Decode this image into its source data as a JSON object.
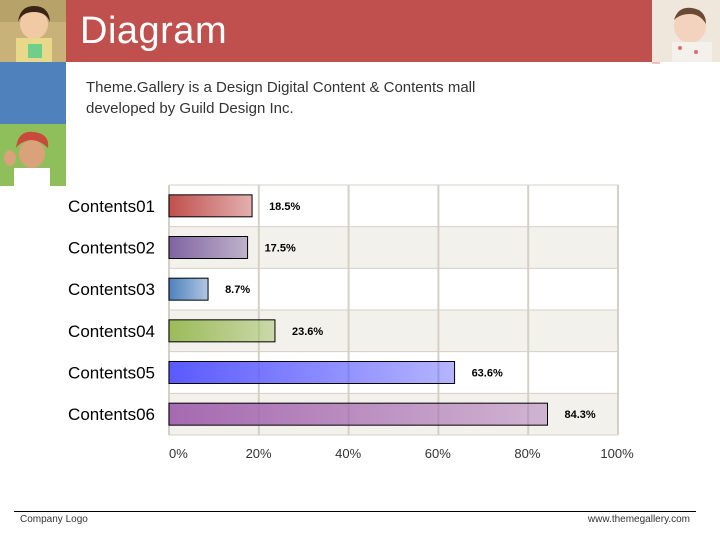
{
  "header": {
    "title": "Diagram"
  },
  "intro": {
    "line1": "Theme.Gallery  is a Design Digital Content & Contents mall",
    "line2": "developed by Guild Design Inc."
  },
  "chart_data": {
    "type": "bar",
    "orientation": "horizontal",
    "categories": [
      "Contents01",
      "Contents02",
      "Contents03",
      "Contents04",
      "Contents05",
      "Contents06"
    ],
    "values": [
      18.5,
      17.5,
      8.7,
      23.6,
      63.6,
      84.3
    ],
    "value_labels": [
      "18.5%",
      "17.5%",
      "8.7%",
      "23.6%",
      "63.6%",
      "84.3%"
    ],
    "bar_colors": [
      "#c0504d",
      "#8064a2",
      "#4f81bd",
      "#9bbb59",
      "#5a5aff",
      "#a569b0"
    ],
    "xlim": [
      0,
      100
    ],
    "x_ticks": [
      0,
      20,
      40,
      60,
      80,
      100
    ],
    "x_tick_labels": [
      "0%",
      "20%",
      "40%",
      "60%",
      "80%",
      "100%"
    ],
    "grid": true,
    "title": "",
    "xlabel": "",
    "ylabel": ""
  },
  "footer": {
    "company_logo": "Company Logo",
    "website": "www.themegallery.com"
  },
  "colors": {
    "title_band": "#c0504d",
    "side_block": "#4f81bd"
  }
}
